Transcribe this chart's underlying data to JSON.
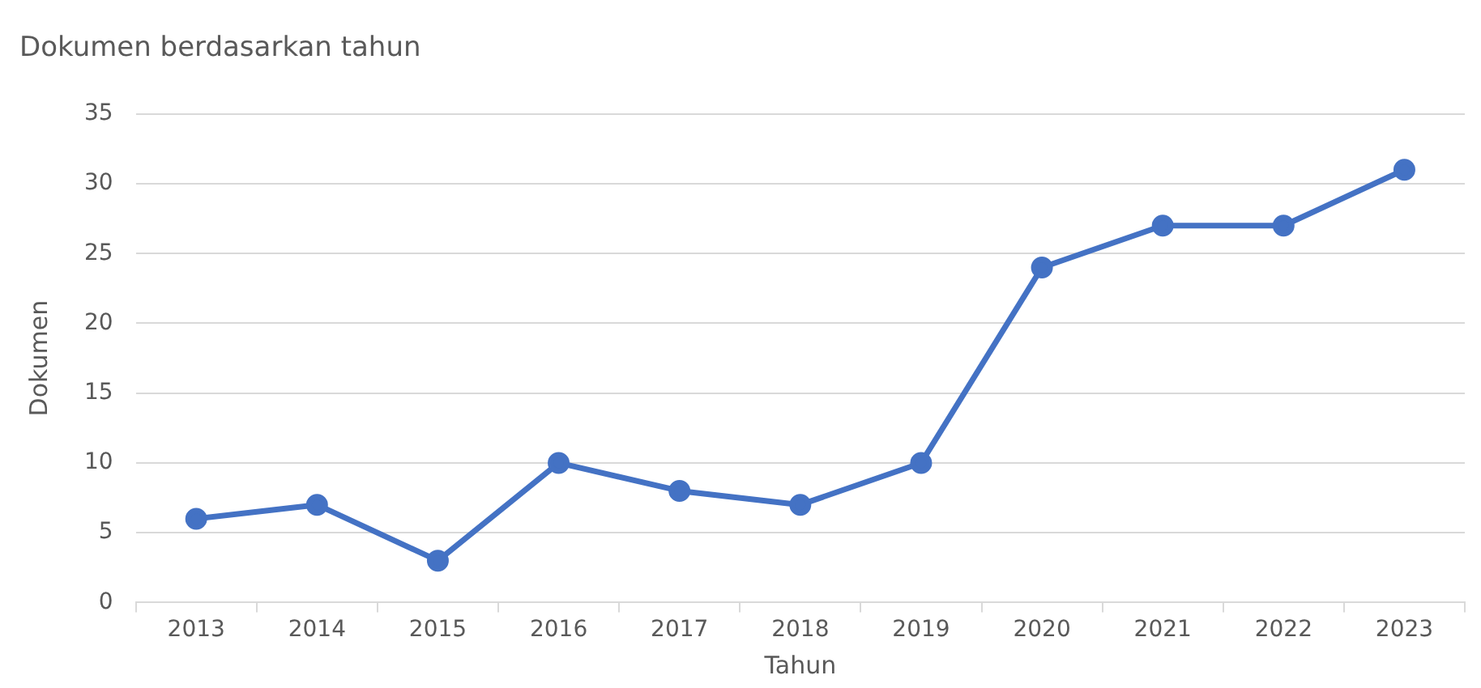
{
  "chart_data": {
    "type": "line",
    "title": "Dokumen berdasarkan tahun",
    "xlabel": "Tahun",
    "ylabel": "Dokumen",
    "categories": [
      "2013",
      "2014",
      "2015",
      "2016",
      "2017",
      "2018",
      "2019",
      "2020",
      "2021",
      "2022",
      "2023"
    ],
    "series": [
      {
        "color": "#4472c4",
        "values": [
          6,
          7,
          3,
          10,
          8,
          7,
          10,
          24,
          27,
          27,
          31
        ]
      }
    ],
    "ylim": [
      0,
      35
    ],
    "yticks": [
      0,
      5,
      10,
      15,
      20,
      25,
      30,
      35
    ],
    "grid": "y",
    "marker": "circle",
    "line_style": "solid"
  }
}
